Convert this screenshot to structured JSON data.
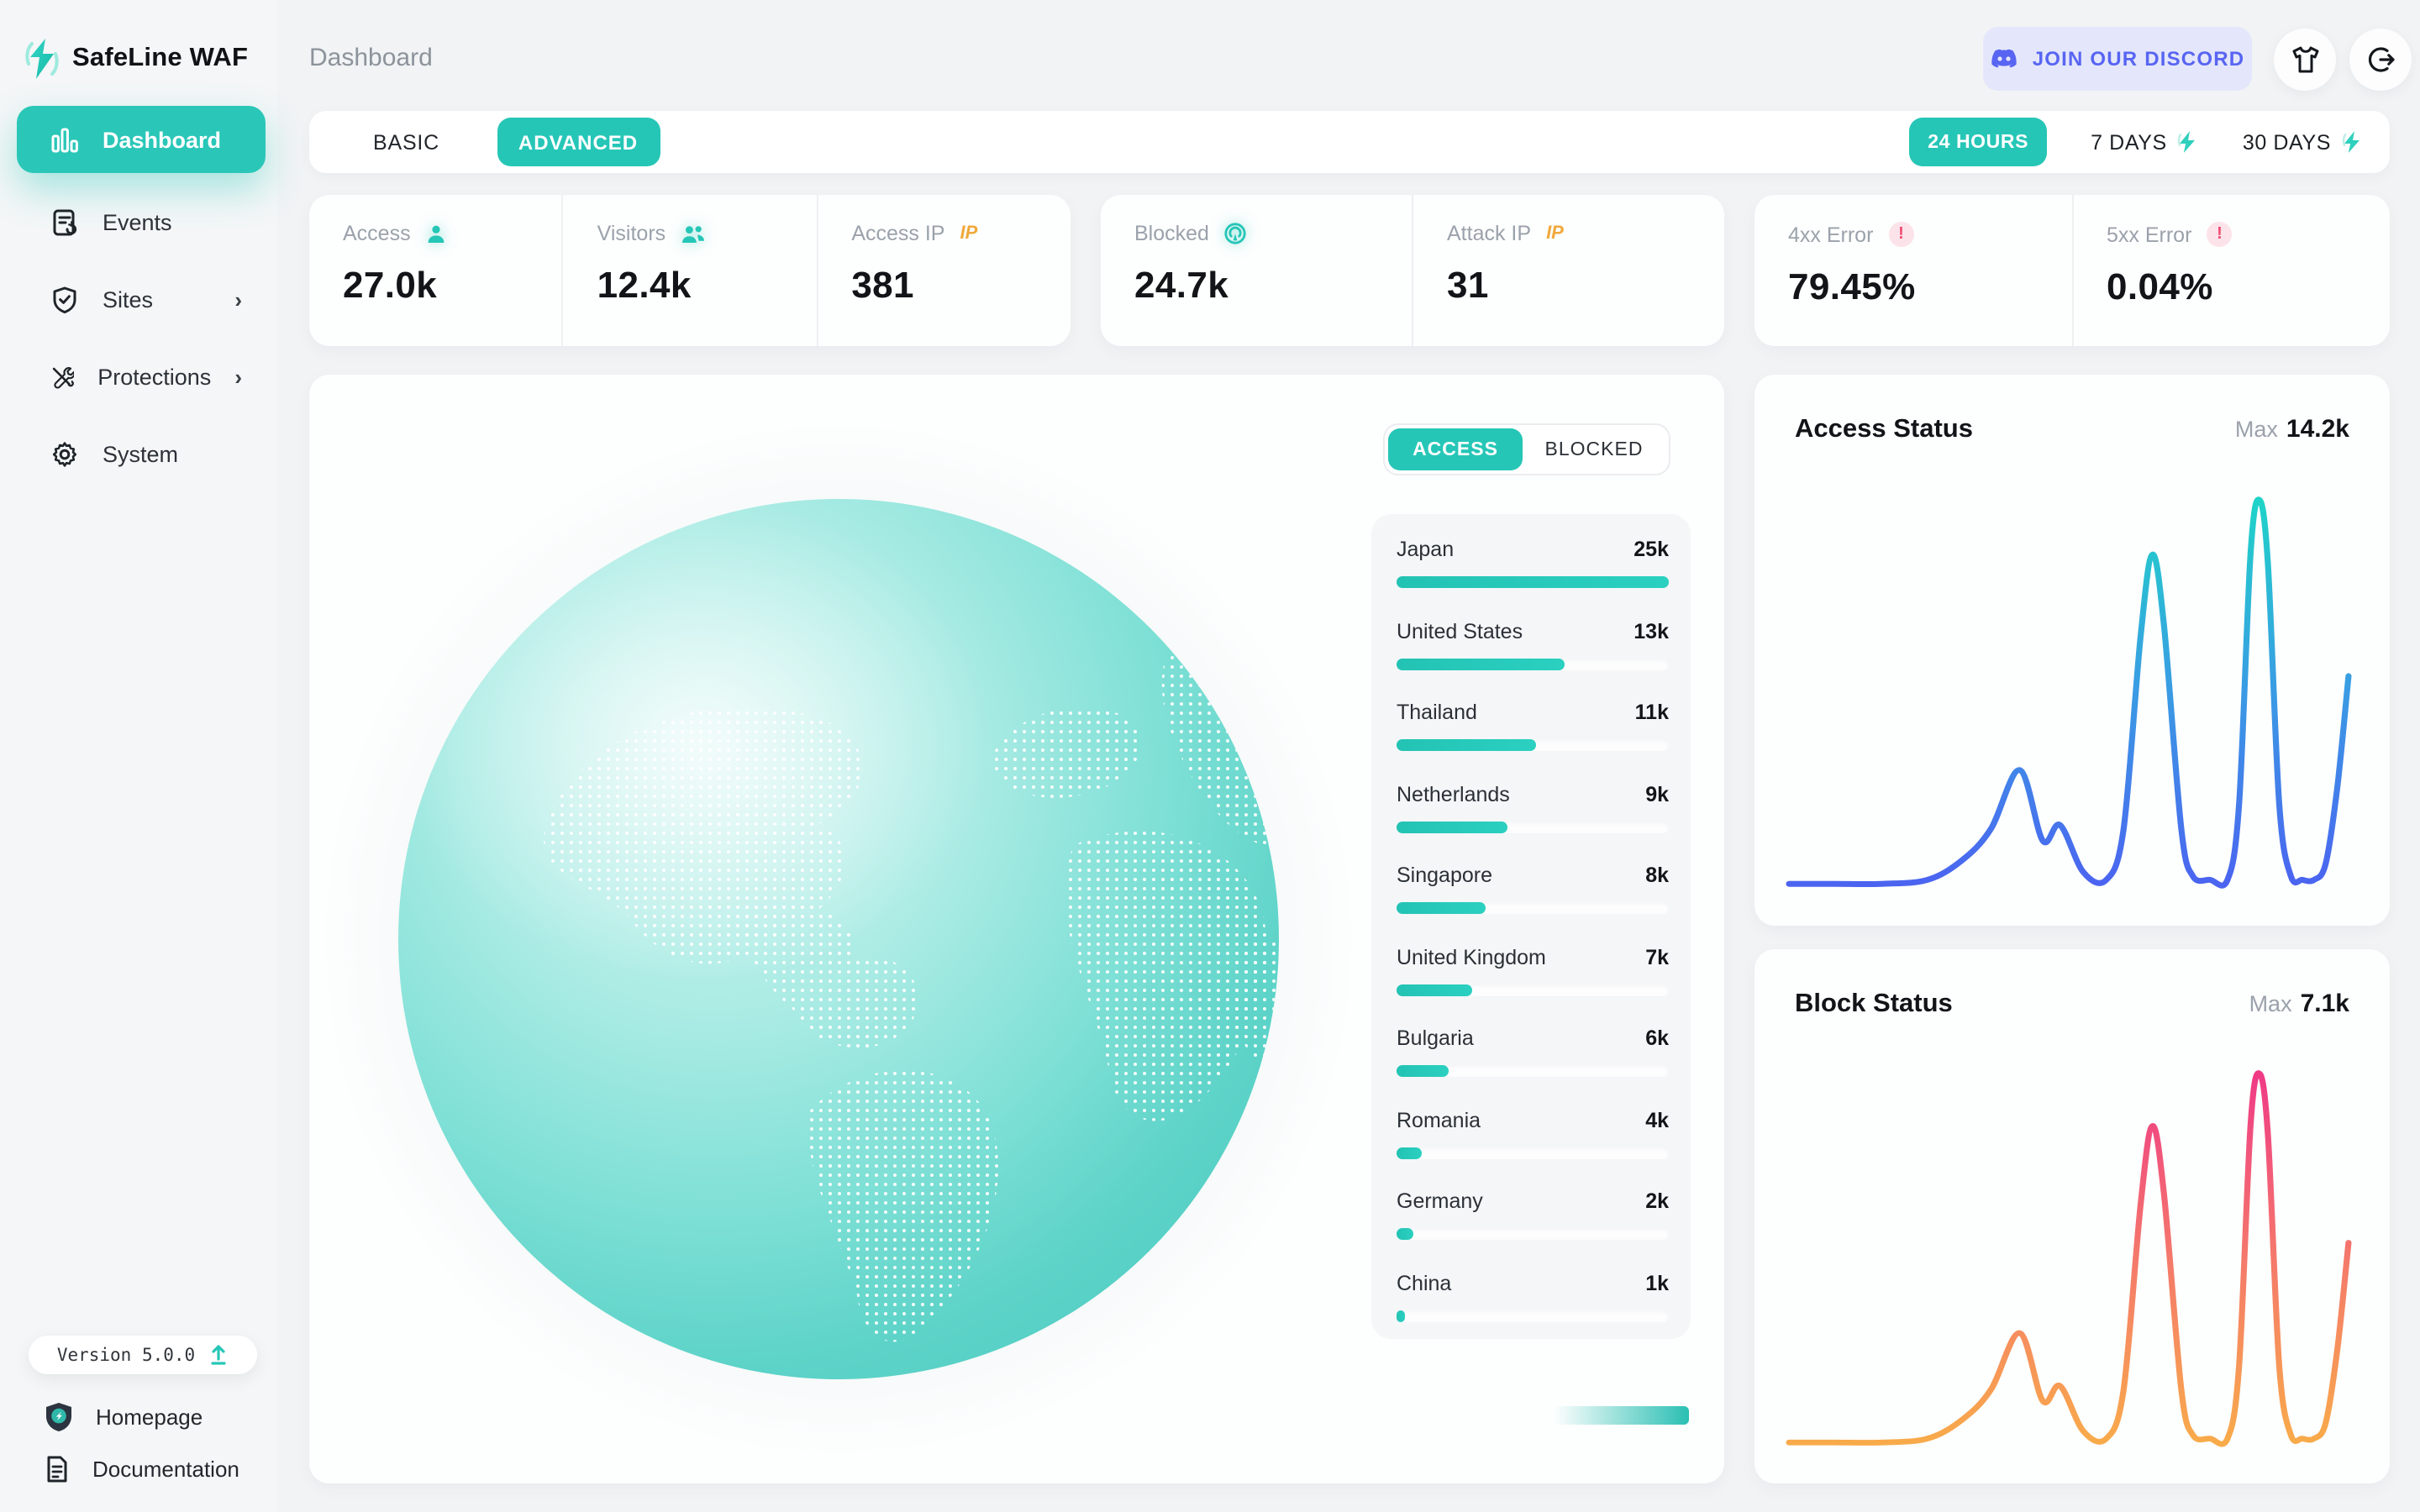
{
  "app": {
    "brand": "SafeLine WAF",
    "breadcrumb": "Dashboard"
  },
  "header": {
    "discord_label": "JOIN OUR DISCORD"
  },
  "sidebar": {
    "items": [
      {
        "label": "Dashboard",
        "active": true
      },
      {
        "label": "Events"
      },
      {
        "label": "Sites",
        "chevron": "›"
      },
      {
        "label": "Protections",
        "chevron": "›"
      },
      {
        "label": "System"
      }
    ],
    "version_label": "Version 5.0.0",
    "links": [
      {
        "label": "Homepage"
      },
      {
        "label": "Documentation"
      }
    ]
  },
  "mode_tabs": {
    "basic": "BASIC",
    "advanced": "ADVANCED",
    "active": "ADVANCED"
  },
  "range_tabs": {
    "h24": "24 HOURS",
    "d7": "7 DAYS",
    "d30": "30 DAYS",
    "active": "24 HOURS"
  },
  "stats": {
    "access": {
      "label": "Access",
      "value": "27.0k"
    },
    "visitors": {
      "label": "Visitors",
      "value": "12.4k"
    },
    "access_ip": {
      "label": "Access IP",
      "value": "381",
      "badge": "IP"
    },
    "blocked": {
      "label": "Blocked",
      "value": "24.7k"
    },
    "attack_ip": {
      "label": "Attack IP",
      "value": "31",
      "badge": "IP"
    },
    "err4xx": {
      "label": "4xx Error",
      "value": "79.45%",
      "badge": "!"
    },
    "err5xx": {
      "label": "5xx Error",
      "value": "0.04%",
      "badge": "!"
    }
  },
  "globe_panel": {
    "toggle": {
      "access": "ACCESS",
      "blocked": "BLOCKED",
      "active": "ACCESS"
    },
    "countries": [
      {
        "name": "Japan",
        "value": "25k",
        "pct": 100
      },
      {
        "name": "United States",
        "value": "13k",
        "pct": 62
      },
      {
        "name": "Thailand",
        "value": "11k",
        "pct": 51
      },
      {
        "name": "Netherlands",
        "value": "9k",
        "pct": 41
      },
      {
        "name": "Singapore",
        "value": "8k",
        "pct": 33
      },
      {
        "name": "United Kingdom",
        "value": "7k",
        "pct": 28
      },
      {
        "name": "Bulgaria",
        "value": "6k",
        "pct": 19
      },
      {
        "name": "Romania",
        "value": "4k",
        "pct": 9
      },
      {
        "name": "Germany",
        "value": "2k",
        "pct": 6
      },
      {
        "name": "China",
        "value": "1k",
        "pct": 3
      }
    ]
  },
  "charts": {
    "access_status": {
      "title": "Access Status",
      "max_label": "Max",
      "max_value": "14.2k",
      "gradient": [
        "#4b64f0",
        "#3a9be4",
        "#1fd3c8"
      ]
    },
    "block_status": {
      "title": "Block Status",
      "max_label": "Max",
      "max_value": "7.1k",
      "gradient": [
        "#f8ab4a",
        "#f4796b",
        "#ef3a86"
      ]
    }
  },
  "chart_data": [
    {
      "type": "line",
      "title": "Access Status",
      "max_annotation": "14.2k",
      "x_percent": [
        0,
        8,
        16,
        24,
        30,
        35,
        40,
        44,
        47,
        51,
        55,
        58,
        61,
        63,
        65,
        68,
        70,
        73,
        76,
        78,
        80,
        81.5,
        83,
        85,
        87,
        89,
        91,
        93,
        95,
        97
      ],
      "values_percent_of_max": [
        2,
        2,
        2,
        3,
        8,
        16,
        31,
        13,
        17,
        5,
        3,
        16,
        66,
        86,
        68,
        16,
        4,
        3,
        3,
        22,
        86,
        100,
        84,
        22,
        4,
        3,
        3,
        7,
        26,
        55
      ],
      "ylim": [
        0,
        14200
      ],
      "grid": false,
      "legend": "none"
    },
    {
      "type": "line",
      "title": "Block Status",
      "max_annotation": "7.1k",
      "x_percent": [
        0,
        8,
        16,
        24,
        30,
        35,
        40,
        44,
        47,
        51,
        55,
        58,
        61,
        63,
        65,
        68,
        70,
        73,
        76,
        78,
        80,
        81.5,
        83,
        85,
        87,
        89,
        91,
        93,
        95,
        97
      ],
      "values_percent_of_max": [
        2,
        2,
        2,
        3,
        8,
        16,
        31,
        13,
        17,
        5,
        3,
        16,
        66,
        86,
        68,
        16,
        4,
        3,
        3,
        22,
        86,
        100,
        84,
        22,
        4,
        3,
        3,
        7,
        26,
        55
      ],
      "ylim": [
        0,
        7100
      ],
      "grid": false,
      "legend": "none"
    }
  ],
  "colors": {
    "accent_teal": "#26c6b7",
    "discord_blurple": "#5865f2",
    "ip_orange": "#f0a93b",
    "alert_red": "#f2486e",
    "page_bg": "#f1f3f5",
    "card_bg": "#fdfefe"
  }
}
